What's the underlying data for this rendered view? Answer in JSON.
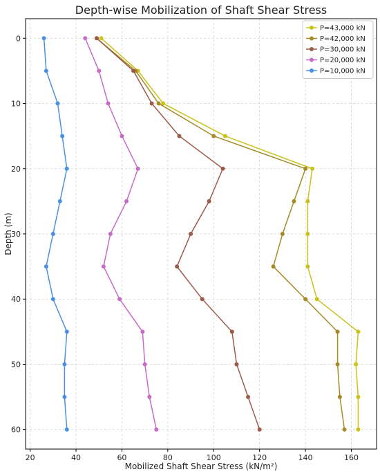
{
  "chart_data": {
    "type": "line",
    "title": "Depth-wise Mobilization of Shaft Shear Stress",
    "xlabel": "Mobilized Shaft Shear Stress (kN/m²)",
    "ylabel": "Depth (m)",
    "xlim": [
      18,
      171
    ],
    "ylim": [
      63,
      -3
    ],
    "y_inverted": true,
    "grid": true,
    "legend_position": "top-right",
    "x_ticks": [
      20,
      40,
      60,
      80,
      100,
      120,
      140,
      160
    ],
    "y_ticks": [
      0,
      10,
      20,
      30,
      40,
      50,
      60
    ],
    "series": [
      {
        "name": "P=43,000 kN",
        "color": "#c9c21a",
        "points": [
          [
            51,
            0
          ],
          [
            67,
            5
          ],
          [
            78,
            10
          ],
          [
            105,
            15
          ],
          [
            143,
            20
          ],
          [
            141,
            25
          ],
          [
            141,
            30
          ],
          [
            141,
            35
          ],
          [
            145,
            40
          ],
          [
            163,
            45
          ],
          [
            162,
            50
          ],
          [
            163,
            55
          ],
          [
            163,
            60
          ]
        ]
      },
      {
        "name": "P=42,000 kN",
        "color": "#a68a26",
        "points": [
          [
            49,
            0
          ],
          [
            66,
            5
          ],
          [
            76,
            10
          ],
          [
            100,
            15
          ],
          [
            140,
            20
          ],
          [
            135,
            25
          ],
          [
            130,
            30
          ],
          [
            126,
            35
          ],
          [
            140,
            40
          ],
          [
            154,
            45
          ],
          [
            154,
            50
          ],
          [
            155,
            55
          ],
          [
            157,
            60
          ]
        ]
      },
      {
        "name": "P=30,000 kN",
        "color": "#9c5a4a",
        "points": [
          [
            49,
            0
          ],
          [
            65,
            5
          ],
          [
            73,
            10
          ],
          [
            85,
            15
          ],
          [
            104,
            20
          ],
          [
            98,
            25
          ],
          [
            90,
            30
          ],
          [
            84,
            35
          ],
          [
            95,
            40
          ],
          [
            108,
            45
          ],
          [
            110,
            50
          ],
          [
            115,
            55
          ],
          [
            120,
            60
          ]
        ]
      },
      {
        "name": "P=20,000 kN",
        "color": "#c66cc6",
        "points": [
          [
            44,
            0
          ],
          [
            50,
            5
          ],
          [
            54,
            10
          ],
          [
            60,
            15
          ],
          [
            67,
            20
          ],
          [
            62,
            25
          ],
          [
            55,
            30
          ],
          [
            52,
            35
          ],
          [
            59,
            40
          ],
          [
            69,
            45
          ],
          [
            70,
            50
          ],
          [
            72,
            55
          ],
          [
            75,
            60
          ]
        ]
      },
      {
        "name": "P=10,000 kN",
        "color": "#4a8fe0",
        "points": [
          [
            26,
            0
          ],
          [
            27,
            5
          ],
          [
            32,
            10
          ],
          [
            34,
            15
          ],
          [
            36,
            20
          ],
          [
            33,
            25
          ],
          [
            30,
            30
          ],
          [
            27,
            35
          ],
          [
            30,
            40
          ],
          [
            36,
            45
          ],
          [
            35,
            50
          ],
          [
            35,
            55
          ],
          [
            36,
            60
          ]
        ]
      }
    ]
  }
}
